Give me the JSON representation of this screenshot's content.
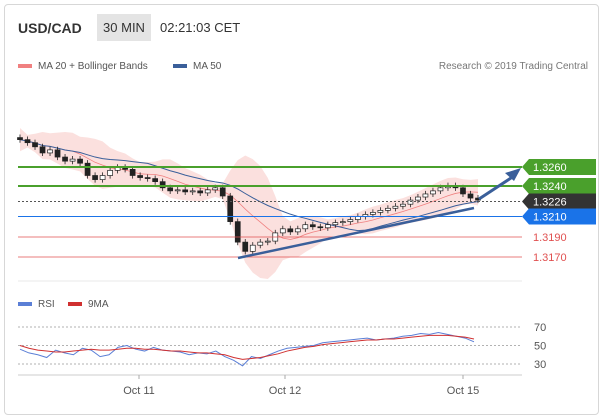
{
  "header": {
    "symbol": "USD/CAD",
    "timeframe": "30 MIN",
    "time": "02:21:03 CET"
  },
  "legend": {
    "ma20_bb": "MA 20 + Bollinger Bands",
    "ma50": "MA 50",
    "credit": "Research © 2019 Trading Central"
  },
  "colors": {
    "bb_fill": "#fbe0de",
    "ma20": "#f08080",
    "ma50": "#3a5f9a",
    "resist": "#4aa02c",
    "support": "#1a73e8",
    "neg": "#e05050",
    "candle": "#222222",
    "rsi": "#5b7fd6",
    "ma9": "#d03030"
  },
  "levels": [
    {
      "value": "1.3260",
      "kind": "resistance"
    },
    {
      "value": "1.3240",
      "kind": "resistance"
    },
    {
      "value": "1.3226",
      "kind": "current"
    },
    {
      "value": "1.3210",
      "kind": "support"
    },
    {
      "value": "1.3190",
      "kind": "minor"
    },
    {
      "value": "1.3170",
      "kind": "minor"
    }
  ],
  "xaxis": [
    "Oct 11",
    "Oct 12",
    "Oct 15"
  ],
  "rsi_panel": {
    "rsi_label": "RSI",
    "ma_label": "9MA",
    "ticks": [
      "70",
      "50",
      "30"
    ]
  },
  "chart_data": [
    {
      "type": "candlestick",
      "title": "USD/CAD 30 MIN",
      "series": [
        {
          "name": "MA 20 + Bollinger Bands"
        },
        {
          "name": "MA 50"
        }
      ],
      "categories": [
        "Oct 11",
        "Oct 12",
        "Oct 15"
      ],
      "ylim": [
        1.316,
        1.3265
      ],
      "close": [
        1.3285,
        1.3282,
        1.3278,
        1.3272,
        1.3275,
        1.3268,
        1.3264,
        1.3266,
        1.3262,
        1.325,
        1.3246,
        1.325,
        1.3255,
        1.3258,
        1.3256,
        1.325,
        1.3248,
        1.3247,
        1.3244,
        1.3238,
        1.3235,
        1.3236,
        1.3234,
        1.3235,
        1.3233,
        1.3236,
        1.3238,
        1.323,
        1.3205,
        1.3185,
        1.3176,
        1.3182,
        1.3185,
        1.3186,
        1.3194,
        1.3198,
        1.3195,
        1.3198,
        1.3202,
        1.32,
        1.3199,
        1.3202,
        1.3204,
        1.3205,
        1.3207,
        1.321,
        1.3212,
        1.3214,
        1.3216,
        1.3218,
        1.322,
        1.3222,
        1.3226,
        1.3229,
        1.3232,
        1.3235,
        1.3238,
        1.324,
        1.3238,
        1.3232,
        1.3228,
        1.3226
      ]
    },
    {
      "type": "line",
      "title": "RSI",
      "series": [
        {
          "name": "RSI"
        },
        {
          "name": "9MA"
        }
      ],
      "yticks": [
        70,
        50,
        30
      ],
      "rsi": [
        46,
        42,
        40,
        37,
        45,
        42,
        40,
        47,
        45,
        38,
        40,
        48,
        50,
        46,
        44,
        48,
        45,
        44,
        43,
        40,
        42,
        41,
        44,
        38,
        34,
        28,
        38,
        36,
        40,
        44,
        47,
        48,
        49,
        50,
        53,
        54,
        55,
        56,
        57,
        58,
        56,
        57,
        58,
        60,
        61,
        63,
        62,
        64,
        62,
        60,
        58,
        54
      ],
      "ma": [
        50,
        47,
        45,
        44,
        43,
        43,
        44,
        45,
        46,
        45,
        45,
        46,
        47,
        47,
        46,
        46,
        45,
        44,
        44,
        43,
        42,
        42,
        41,
        40,
        37,
        35,
        36,
        37,
        39,
        41,
        44,
        46,
        48,
        49,
        51,
        52,
        53,
        54,
        55,
        56,
        56,
        57,
        57,
        58,
        59,
        60,
        61,
        61,
        61,
        60,
        59,
        57
      ]
    }
  ]
}
